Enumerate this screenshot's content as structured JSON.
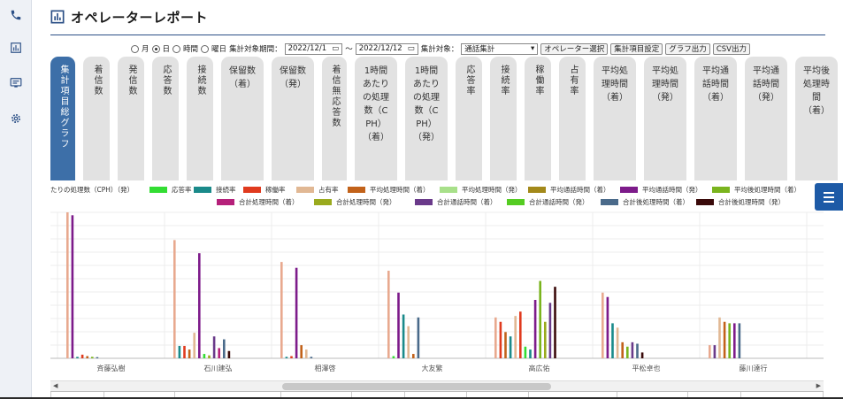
{
  "header": {
    "title": "オペレーターレポート",
    "title_icon": "bar-chart-icon"
  },
  "rail": {
    "icons": [
      "phone-icon",
      "bar-chart-icon",
      "monitor-chat-icon",
      "gear-icon"
    ]
  },
  "filters": {
    "radios": [
      {
        "label": "月",
        "checked": false
      },
      {
        "label": "日",
        "checked": true
      },
      {
        "label": "時間",
        "checked": false
      },
      {
        "label": "曜日",
        "checked": false
      }
    ],
    "period_label": "集計対象期間：",
    "date_from": "2022/12/1",
    "range_sep": "〜",
    "date_to": "2022/12/12",
    "target_label": "集計対象：",
    "target_value": "通話集計",
    "operator_button": "オペレーター選択",
    "items_button": "集計項目設定",
    "graph_button": "グラフ出力",
    "csv_button": "CSV出力"
  },
  "tabs": [
    {
      "label": "集計項目総グラフ",
      "active": true,
      "vertical": true
    },
    {
      "label": "着信数",
      "active": false,
      "vertical": true
    },
    {
      "label": "発信数",
      "active": false,
      "vertical": true
    },
    {
      "label": "応答数",
      "active": false,
      "vertical": true
    },
    {
      "label": "接続数",
      "active": false,
      "vertical": true
    },
    {
      "label": "保留数\n（着）",
      "active": false,
      "vertical": false
    },
    {
      "label": "保留数\n（発）",
      "active": false,
      "vertical": false
    },
    {
      "label": "着信無応答数",
      "active": false,
      "vertical": true
    },
    {
      "label": "1時間\nあたり\nの処理\n数（C\nPH）\n（着）",
      "active": false,
      "vertical": false
    },
    {
      "label": "1時間\nあたり\nの処理\n数（C\nPH）\n（発）",
      "active": false,
      "vertical": false
    },
    {
      "label": "応答率",
      "active": false,
      "vertical": true
    },
    {
      "label": "接続率",
      "active": false,
      "vertical": true
    },
    {
      "label": "稼働率",
      "active": false,
      "vertical": true
    },
    {
      "label": "占有率",
      "active": false,
      "vertical": true
    },
    {
      "label": "平均処\n理時間\n（着）",
      "active": false,
      "vertical": false
    },
    {
      "label": "平均処\n理時間\n（発）",
      "active": false,
      "vertical": false
    },
    {
      "label": "平均通\n話時間\n（着）",
      "active": false,
      "vertical": false
    },
    {
      "label": "平均通\n話時間\n（発）",
      "active": false,
      "vertical": false
    },
    {
      "label": "平均後\n処理時\n間\n（着）",
      "active": false,
      "vertical": false
    }
  ],
  "legend": {
    "row1": [
      {
        "label": "たりの処理数（CPH）（発）",
        "color": ""
      },
      {
        "label": "応答率",
        "color": "#33dd33"
      },
      {
        "label": "接続率",
        "color": "#1a8a8a"
      },
      {
        "label": "稼働率",
        "color": "#e03a1e"
      },
      {
        "label": "占有率",
        "color": "#e1b894"
      },
      {
        "label": "平均処理時間（着）",
        "color": "#c2621a"
      },
      {
        "label": "平均処理時間（発）",
        "color": "#a8e08a"
      },
      {
        "label": "平均通話時間（着）",
        "color": "#a3891a"
      },
      {
        "label": "平均通話時間（発）",
        "color": "#7d1b8a"
      },
      {
        "label": "平均後処理時間（着）",
        "color": "#7ab41e"
      }
    ],
    "row2": [
      {
        "label": "合計処理時間（着）",
        "color": "#b5207a"
      },
      {
        "label": "合計処理時間（発）",
        "color": "#9aaa1e"
      },
      {
        "label": "合計通話時間（着）",
        "color": "#6a3a8a"
      },
      {
        "label": "合計通話時間（発）",
        "color": "#55cc22"
      },
      {
        "label": "合計後処理時間（着）",
        "color": "#4a6a8a"
      },
      {
        "label": "合計後処理時間（発）",
        "color": "#3a0a0a"
      }
    ]
  },
  "chart_data": {
    "type": "bar",
    "categories": [
      "斉藤弘樹",
      "石川建弘",
      "相澤啓",
      "大友繁",
      "高広佑",
      "平松卓也",
      "藤川達行"
    ],
    "category_label_color": "#555555",
    "grid": true,
    "ylim": [
      0,
      1
    ],
    "bar_groups": [
      [
        {
          "color": "#e8a98f",
          "v": 1.0
        },
        {
          "color": "#7d1b8a",
          "v": 0.98
        },
        {
          "color": "#1a8a8a",
          "v": 0.01
        },
        {
          "color": "#e03a1e",
          "v": 0.025
        },
        {
          "color": "#c2621a",
          "v": 0.015
        },
        {
          "color": "#7ab41e",
          "v": 0.01
        },
        {
          "color": "#4a6a8a",
          "v": 0.008
        }
      ],
      [
        {
          "color": "#e8a98f",
          "v": 0.81
        },
        {
          "color": "#1a8a8a",
          "v": 0.085
        },
        {
          "color": "#e03a1e",
          "v": 0.085
        },
        {
          "color": "#c2621a",
          "v": 0.06
        },
        {
          "color": "#e1b894",
          "v": 0.175
        },
        {
          "color": "#7d1b8a",
          "v": 0.72
        },
        {
          "color": "#33dd33",
          "v": 0.03
        },
        {
          "color": "#9aaa1e",
          "v": 0.02
        },
        {
          "color": "#6a3a8a",
          "v": 0.15
        },
        {
          "color": "#b5207a",
          "v": 0.07
        },
        {
          "color": "#4a6a8a",
          "v": 0.13
        },
        {
          "color": "#3a0a0a",
          "v": 0.05
        }
      ],
      [
        {
          "color": "#e8a98f",
          "v": 0.66
        },
        {
          "color": "#1a8a8a",
          "v": 0.01
        },
        {
          "color": "#e03a1e",
          "v": 0.015
        },
        {
          "color": "#7d1b8a",
          "v": 0.62
        },
        {
          "color": "#c2621a",
          "v": 0.09
        },
        {
          "color": "#e1b894",
          "v": 0.06
        },
        {
          "color": "#4a6a8a",
          "v": 0.01
        }
      ],
      [
        {
          "color": "#e8a98f",
          "v": 0.6
        },
        {
          "color": "#33dd33",
          "v": 0.015
        },
        {
          "color": "#7d1b8a",
          "v": 0.45
        },
        {
          "color": "#1a8a8a",
          "v": 0.3
        },
        {
          "color": "#e1b894",
          "v": 0.22
        },
        {
          "color": "#c2621a",
          "v": 0.03
        },
        {
          "color": "#4a6a8a",
          "v": 0.28
        }
      ],
      [
        {
          "color": "#e8a98f",
          "v": 0.28
        },
        {
          "color": "#e03a1e",
          "v": 0.25
        },
        {
          "color": "#c2621a",
          "v": 0.18
        },
        {
          "color": "#1a8a8a",
          "v": 0.15
        },
        {
          "color": "#e1b894",
          "v": 0.29
        },
        {
          "color": "#e03a1e",
          "v": 0.32
        },
        {
          "color": "#33dd33",
          "v": 0.08
        },
        {
          "color": "#1a8a8a",
          "v": 0.06
        },
        {
          "color": "#7d1b8a",
          "v": 0.4
        },
        {
          "color": "#7ab41e",
          "v": 0.53
        },
        {
          "color": "#9aaa1e",
          "v": 0.25
        },
        {
          "color": "#6a3a8a",
          "v": 0.38
        },
        {
          "color": "#3a0a0a",
          "v": 0.49
        }
      ],
      [
        {
          "color": "#e8a98f",
          "v": 0.45
        },
        {
          "color": "#7d1b8a",
          "v": 0.42
        },
        {
          "color": "#1a8a8a",
          "v": 0.24
        },
        {
          "color": "#e1b894",
          "v": 0.21
        },
        {
          "color": "#c2621a",
          "v": 0.11
        },
        {
          "color": "#7ab41e",
          "v": 0.08
        },
        {
          "color": "#6a3a8a",
          "v": 0.11
        },
        {
          "color": "#4a6a8a",
          "v": 0.1
        },
        {
          "color": "#3a0a0a",
          "v": 0.04
        }
      ],
      [
        {
          "color": "#e8a98f",
          "v": 0.09
        },
        {
          "color": "#6a3a8a",
          "v": 0.09
        },
        {
          "color": "#e1b894",
          "v": 0.28
        },
        {
          "color": "#c2621a",
          "v": 0.25
        },
        {
          "color": "#7ab41e",
          "v": 0.24
        },
        {
          "color": "#7d1b8a",
          "v": 0.24
        },
        {
          "color": "#4a6a8a",
          "v": 0.24
        }
      ]
    ]
  }
}
